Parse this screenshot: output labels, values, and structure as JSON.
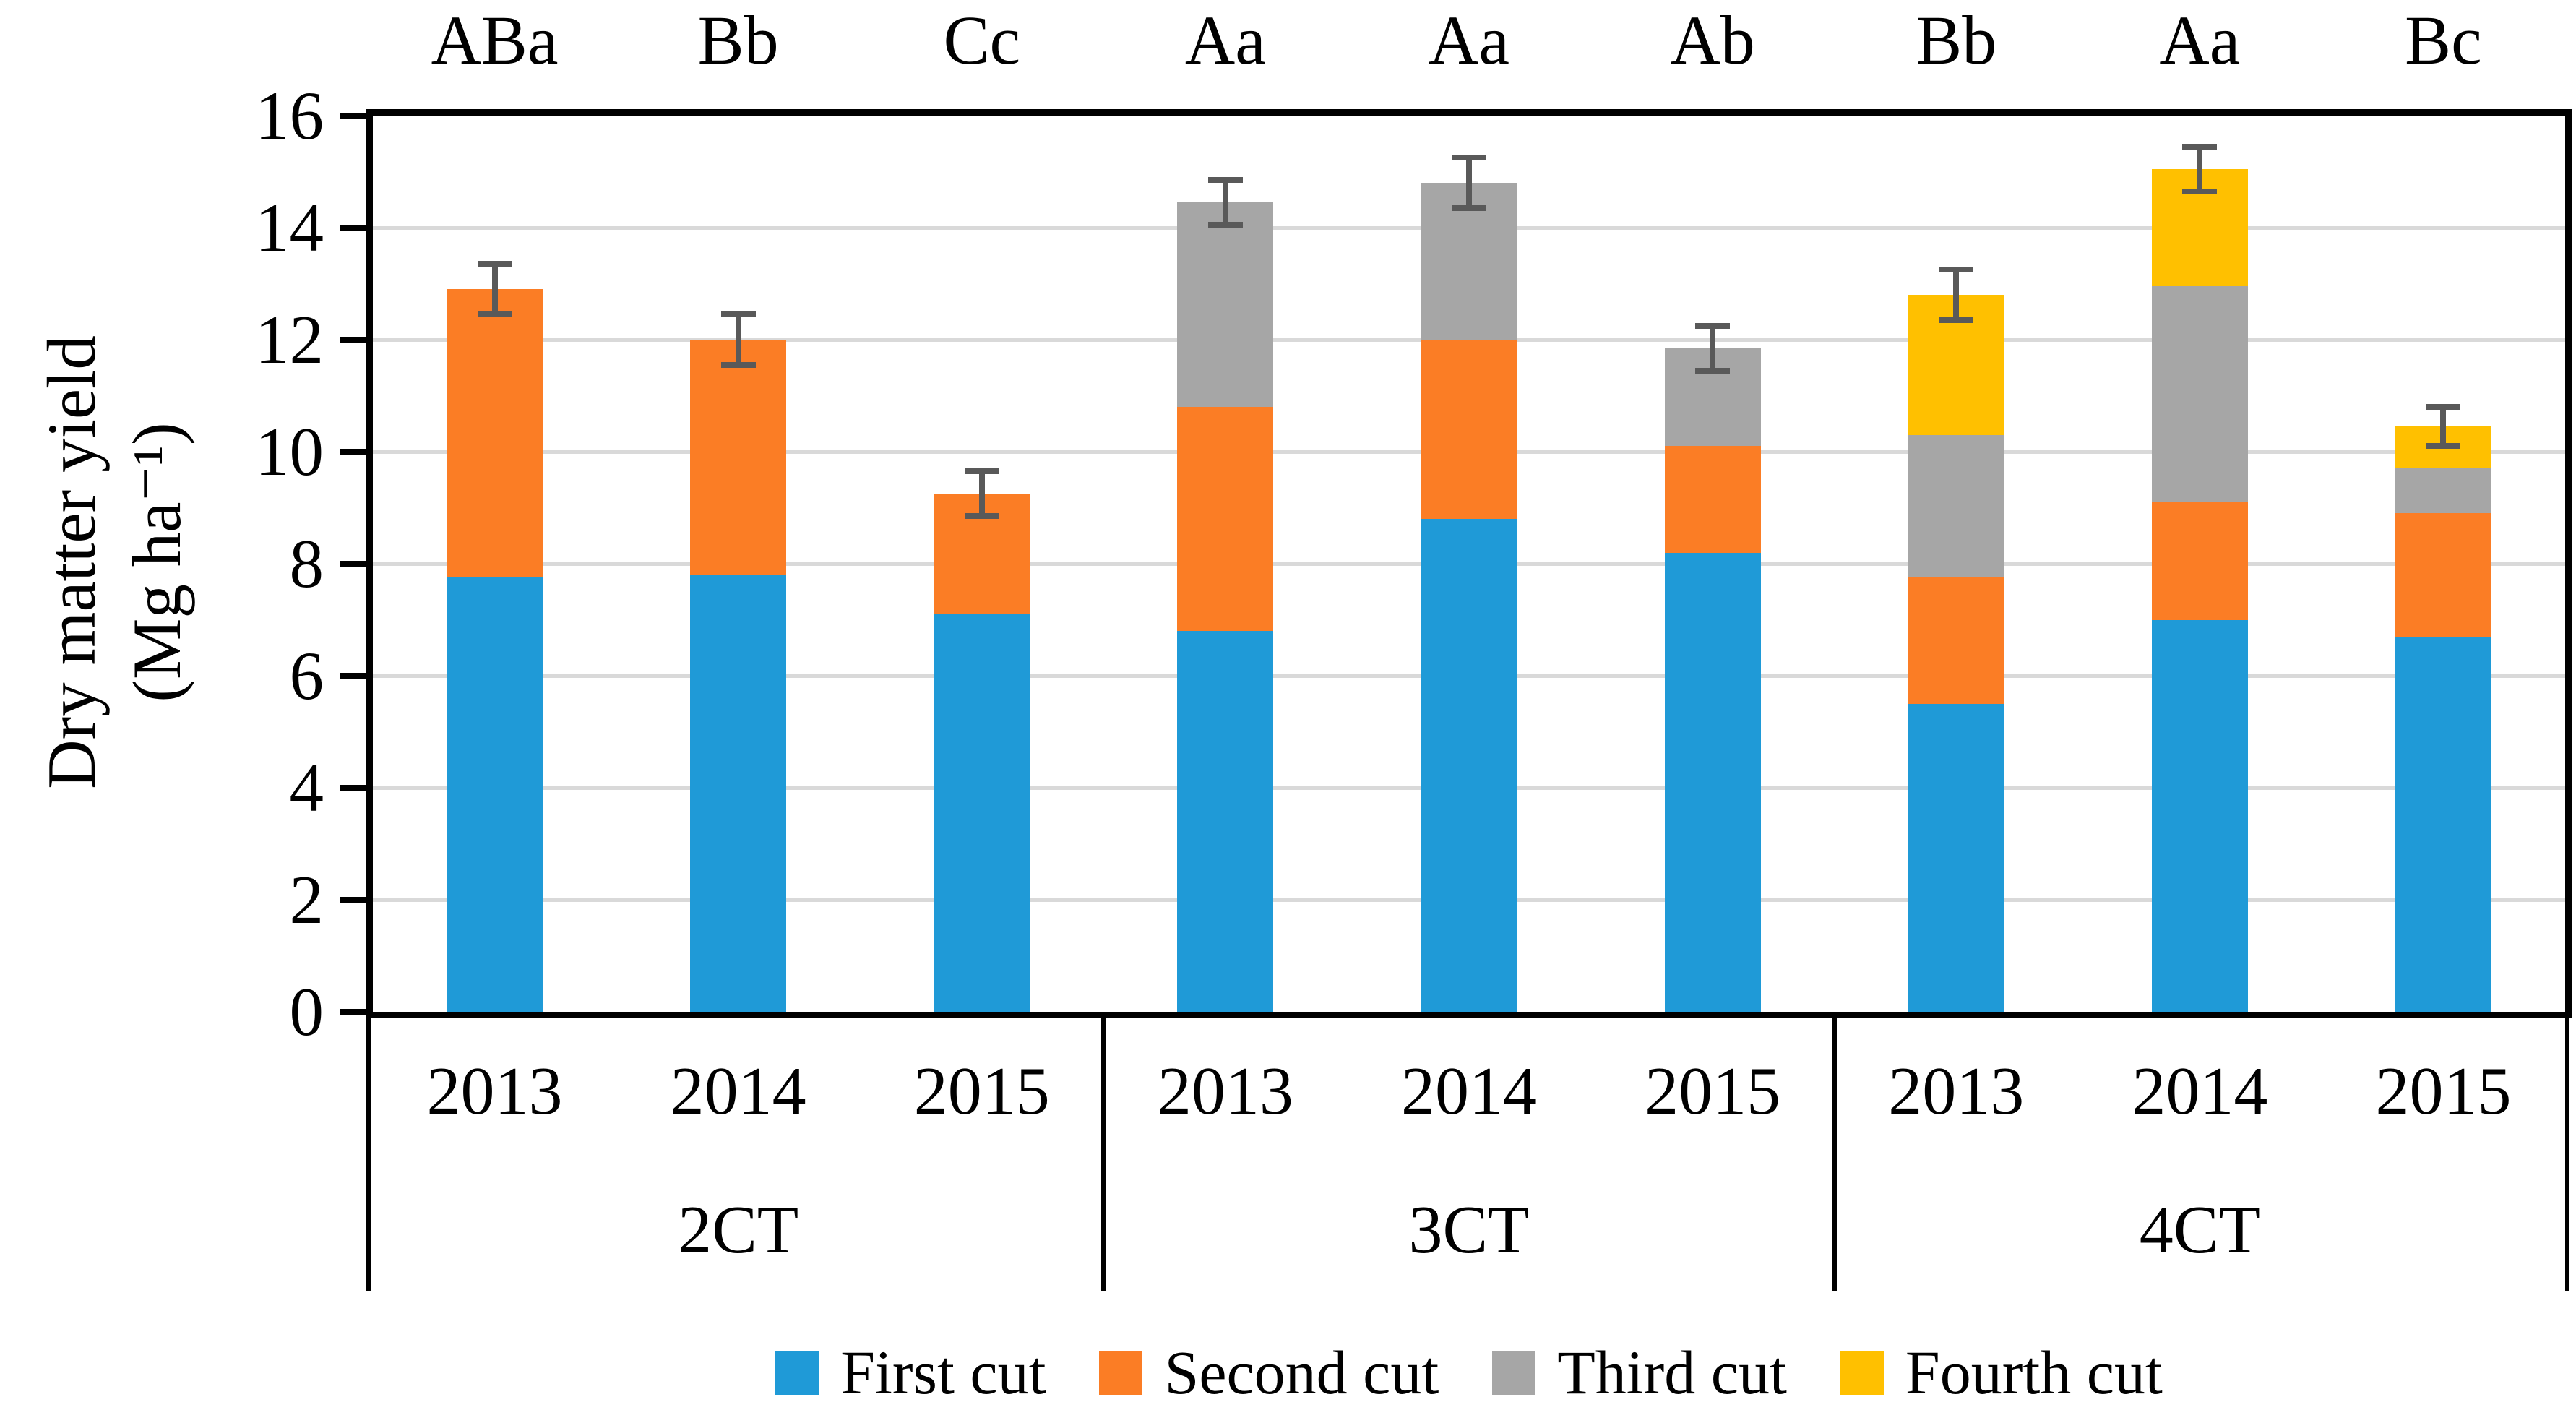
{
  "chart_data": {
    "type": "bar",
    "stacked": true,
    "title": "",
    "ylabel_line1": "Dry matter yield",
    "ylabel_line2": "(Mg ha⁻¹)",
    "ylim": [
      0,
      16
    ],
    "ytick_step": 2,
    "ytick_labels": [
      "0",
      "2",
      "4",
      "6",
      "8",
      "10",
      "12",
      "14",
      "16"
    ],
    "grid": true,
    "legend_position": "bottom",
    "groups": [
      {
        "label": "2CT",
        "years": [
          "2013",
          "2014",
          "2015"
        ]
      },
      {
        "label": "3CT",
        "years": [
          "2013",
          "2014",
          "2015"
        ]
      },
      {
        "label": "4CT",
        "years": [
          "2013",
          "2014",
          "2015"
        ]
      }
    ],
    "significance_labels": [
      "ABa",
      "Bb",
      "Cc",
      "Aa",
      "Aa",
      "Ab",
      "Bb",
      "Aa",
      "Bc"
    ],
    "series": [
      {
        "name": "First cut",
        "color": "#1F9AD7",
        "values": [
          7.75,
          7.8,
          7.1,
          6.8,
          8.8,
          8.2,
          5.5,
          7.0,
          6.7
        ]
      },
      {
        "name": "Second cut",
        "color": "#FB7D25",
        "values": [
          5.15,
          4.2,
          2.15,
          4.0,
          3.2,
          1.9,
          2.25,
          2.1,
          2.2
        ]
      },
      {
        "name": "Third cut",
        "color": "#A6A6A6",
        "values": [
          0,
          0,
          0,
          3.65,
          2.8,
          1.75,
          2.55,
          3.85,
          0.8
        ]
      },
      {
        "name": "Fourth cut",
        "color": "#FFC000",
        "values": [
          0,
          0,
          0,
          0,
          0,
          0,
          2.5,
          2.1,
          0.75
        ]
      }
    ],
    "totals": [
      12.9,
      12.0,
      9.25,
      14.45,
      14.8,
      11.85,
      12.8,
      15.05,
      10.45
    ],
    "error_bars": [
      0.45,
      0.45,
      0.4,
      0.4,
      0.45,
      0.4,
      0.45,
      0.4,
      0.35
    ],
    "colors": {
      "grid": "#D9D9D9",
      "axis": "#000000",
      "error": "#595959",
      "background": "#FFFFFF"
    }
  }
}
